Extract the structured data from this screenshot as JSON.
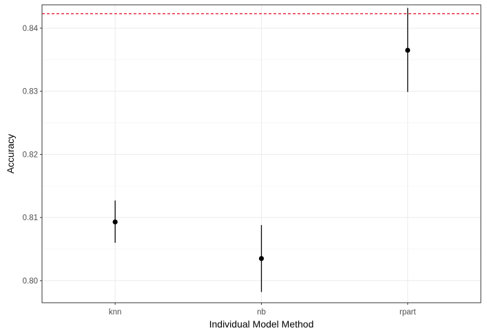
{
  "chart_data": {
    "type": "scatter",
    "title": "",
    "xlabel": "Individual Model Method",
    "ylabel": "Accuracy",
    "categories": [
      "knn",
      "nb",
      "rpart"
    ],
    "points": [
      {
        "category": "knn",
        "y": 0.8093,
        "ymin": 0.806,
        "ymax": 0.8127
      },
      {
        "category": "nb",
        "y": 0.8035,
        "ymin": 0.7982,
        "ymax": 0.8088
      },
      {
        "category": "rpart",
        "y": 0.8365,
        "ymin": 0.8299,
        "ymax": 0.8432
      }
    ],
    "reference_line": {
      "y": 0.8423,
      "color": "#e3001b",
      "style": "dashed"
    },
    "yticks": [
      0.8,
      0.81,
      0.82,
      0.83,
      0.84
    ],
    "ytick_labels": [
      "0.80",
      "0.81",
      "0.82",
      "0.83",
      "0.84"
    ],
    "ylim": [
      0.7965,
      0.8437
    ],
    "grid": true,
    "colors": {
      "point": "#000000",
      "errorbar": "#000000",
      "grid_major": "#ebebeb",
      "grid_minor": "#f5f5f5",
      "panel_border": "#333333"
    }
  }
}
